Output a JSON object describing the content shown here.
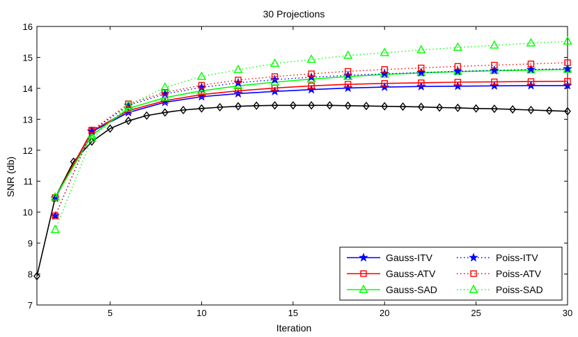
{
  "chart_data": {
    "type": "line",
    "title": "30 Projections",
    "xlabel": "Iteration",
    "ylabel": "SNR (db)",
    "xlim": [
      1,
      30
    ],
    "ylim": [
      7,
      16
    ],
    "xticks": [
      5,
      10,
      15,
      20,
      25,
      30
    ],
    "yticks": [
      7,
      8,
      9,
      10,
      11,
      12,
      13,
      14,
      15,
      16
    ],
    "legend_position": "bottom-right",
    "series": [
      {
        "name": "Diamond (black)",
        "legend": false,
        "color": "#000000",
        "style": "solid",
        "marker": "diamond",
        "x": [
          1,
          2,
          3,
          4,
          5,
          6,
          7,
          8,
          9,
          10,
          11,
          12,
          13,
          14,
          15,
          16,
          17,
          18,
          19,
          20,
          21,
          22,
          23,
          24,
          25,
          26,
          27,
          28,
          29,
          30
        ],
        "y": [
          7.93,
          10.47,
          11.63,
          12.28,
          12.7,
          12.95,
          13.12,
          13.22,
          13.3,
          13.35,
          13.39,
          13.42,
          13.44,
          13.45,
          13.45,
          13.45,
          13.45,
          13.44,
          13.43,
          13.42,
          13.41,
          13.4,
          13.38,
          13.37,
          13.35,
          13.34,
          13.32,
          13.3,
          13.28,
          13.26
        ]
      },
      {
        "name": "Gauss-ITV",
        "legend": true,
        "color": "#0000ff",
        "style": "solid",
        "marker": "star",
        "x": [
          2,
          4,
          6,
          8,
          10,
          12,
          14,
          16,
          18,
          20,
          22,
          24,
          26,
          28,
          30
        ],
        "y": [
          10.45,
          12.6,
          13.22,
          13.55,
          13.73,
          13.83,
          13.9,
          13.96,
          14.01,
          14.04,
          14.06,
          14.07,
          14.08,
          14.09,
          14.09
        ]
      },
      {
        "name": "Gauss-ATV",
        "legend": true,
        "color": "#ff0000",
        "style": "solid",
        "marker": "square",
        "x": [
          2,
          4,
          6,
          8,
          10,
          12,
          14,
          16,
          18,
          20,
          22,
          24,
          26,
          28,
          30
        ],
        "y": [
          10.47,
          12.62,
          13.28,
          13.6,
          13.8,
          13.92,
          14.01,
          14.08,
          14.13,
          14.16,
          14.18,
          14.2,
          14.21,
          14.22,
          14.23
        ]
      },
      {
        "name": "Gauss-SAD",
        "legend": true,
        "color": "#00ff00",
        "style": "solid",
        "marker": "triangle",
        "x": [
          2,
          4,
          6,
          8,
          10,
          12,
          14,
          16,
          18,
          20,
          22,
          24,
          26,
          28,
          30
        ],
        "y": [
          10.48,
          12.48,
          13.35,
          13.7,
          13.92,
          14.08,
          14.2,
          14.3,
          14.38,
          14.45,
          14.5,
          14.54,
          14.57,
          14.59,
          14.61
        ]
      },
      {
        "name": "Poiss-ITV",
        "legend": true,
        "color": "#0000ff",
        "style": "dotted",
        "marker": "star",
        "x": [
          2,
          4,
          6,
          8,
          10,
          12,
          14,
          16,
          18,
          20,
          22,
          24,
          26,
          28,
          30
        ],
        "y": [
          9.88,
          12.62,
          13.45,
          13.82,
          14.03,
          14.18,
          14.28,
          14.36,
          14.42,
          14.47,
          14.51,
          14.55,
          14.58,
          14.61,
          14.63
        ]
      },
      {
        "name": "Poiss-ATV",
        "legend": true,
        "color": "#ff0000",
        "style": "dotted",
        "marker": "square",
        "x": [
          2,
          4,
          6,
          8,
          10,
          12,
          14,
          16,
          18,
          20,
          22,
          24,
          26,
          28,
          30
        ],
        "y": [
          9.88,
          12.65,
          13.5,
          13.87,
          14.1,
          14.27,
          14.38,
          14.47,
          14.55,
          14.61,
          14.66,
          14.71,
          14.75,
          14.79,
          14.83
        ]
      },
      {
        "name": "Poiss-SAD",
        "legend": true,
        "color": "#00ff00",
        "style": "dotted",
        "marker": "triangle",
        "x": [
          2,
          4,
          6,
          8,
          10,
          12,
          14,
          16,
          18,
          20,
          22,
          24,
          26,
          28,
          30
        ],
        "y": [
          9.43,
          12.38,
          13.45,
          14.03,
          14.38,
          14.6,
          14.8,
          14.93,
          15.06,
          15.15,
          15.24,
          15.32,
          15.39,
          15.46,
          15.52
        ]
      }
    ]
  }
}
